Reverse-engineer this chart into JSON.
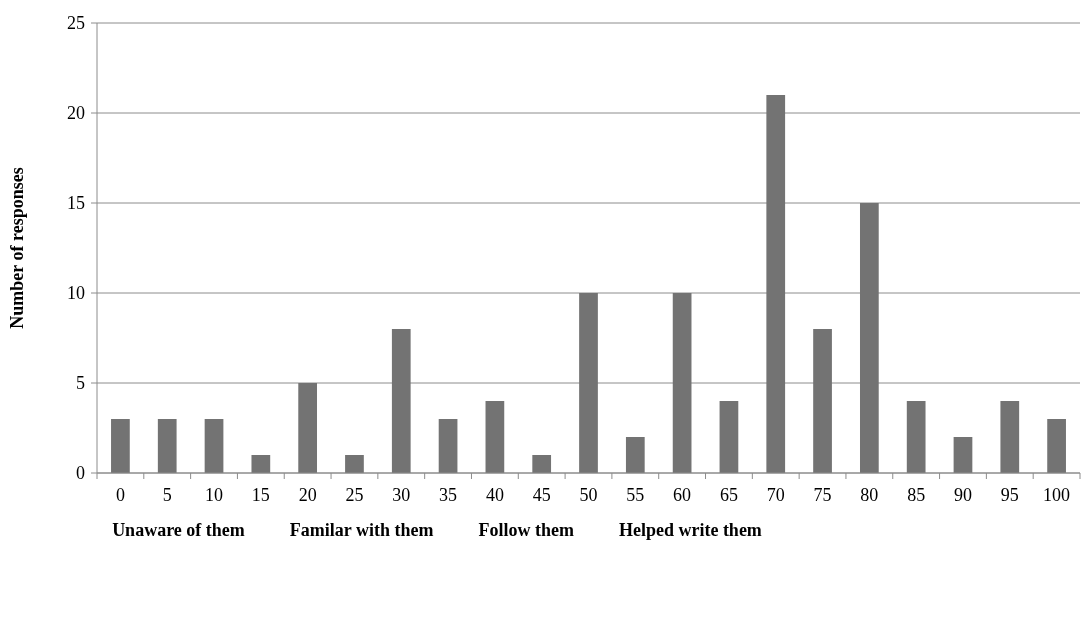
{
  "chart_data": {
    "type": "bar",
    "ylabel": "Number of responses",
    "xlabel": "Unaware of them          Familar with them          Follow them          Helped write them",
    "categories": [
      "0",
      "5",
      "10",
      "15",
      "20",
      "25",
      "30",
      "35",
      "40",
      "45",
      "50",
      "55",
      "60",
      "65",
      "70",
      "75",
      "80",
      "85",
      "90",
      "95",
      "100"
    ],
    "values": [
      3,
      3,
      3,
      1,
      5,
      1,
      8,
      3,
      4,
      1,
      10,
      2,
      10,
      4,
      21,
      8,
      15,
      4,
      2,
      4,
      3
    ],
    "color": "#737373",
    "ylim": [
      0,
      25
    ],
    "yticks": [
      0,
      5,
      10,
      15,
      20,
      25
    ],
    "grid": "y"
  }
}
